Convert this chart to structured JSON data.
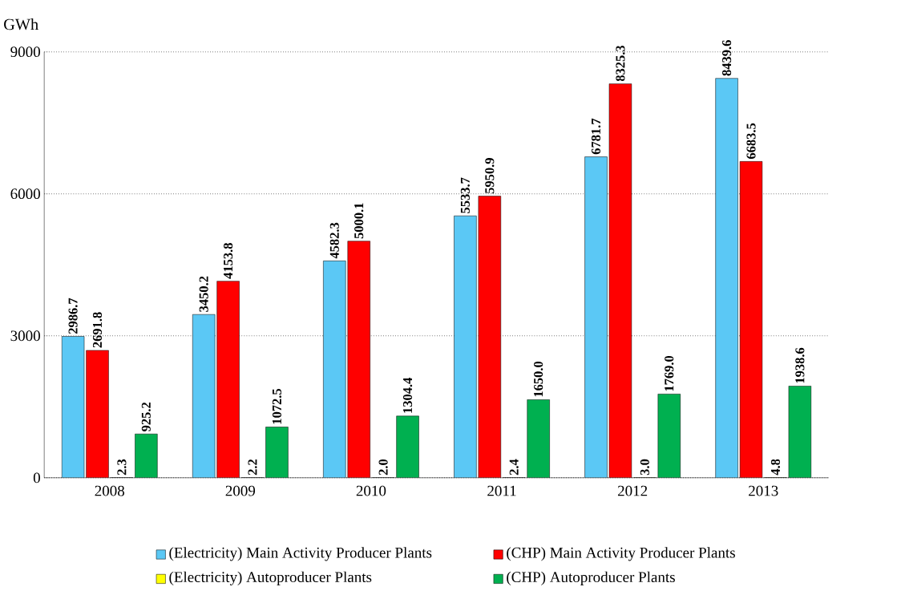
{
  "chart_data": {
    "type": "bar",
    "ylabel": "GWh",
    "categories": [
      "2008",
      "2009",
      "2010",
      "2011",
      "2012",
      "2013"
    ],
    "series": [
      {
        "name": "(Electricity) Main Activity Producer Plants",
        "color": "#5bc8f5",
        "values": [
          2986.7,
          3450.2,
          4582.3,
          5533.7,
          6781.7,
          8439.6
        ],
        "value_labels": [
          "2986.7",
          "3450.2",
          "4582.3",
          "5533.7",
          "6781.7",
          "8439.6"
        ]
      },
      {
        "name": "(CHP) Main Activity Producer Plants",
        "color": "#ff0000",
        "values": [
          2691.8,
          4153.8,
          5000.1,
          5950.9,
          8325.3,
          6683.5
        ],
        "value_labels": [
          "2691.8",
          "4153.8",
          "5000.1",
          "5950.9",
          "8325.3",
          "6683.5"
        ]
      },
      {
        "name": "(Electricity) Autoproducer Plants",
        "color": "#ffff00",
        "values": [
          2.3,
          2.2,
          2.0,
          2.4,
          3.0,
          4.8
        ],
        "value_labels": [
          "2.3",
          "2.2",
          "2.0",
          "2.4",
          "3.0",
          "4.8"
        ]
      },
      {
        "name": "(CHP) Autoproducer Plants",
        "color": "#00b050",
        "values": [
          925.2,
          1072.5,
          1304.4,
          1650.0,
          1769.0,
          1938.6
        ],
        "value_labels": [
          "925.2",
          "1072.5",
          "1304.4",
          "1650.0",
          "1769.0",
          "1938.6"
        ]
      }
    ],
    "ylim": [
      0,
      9000
    ],
    "yticks": [
      0,
      3000,
      6000,
      9000
    ],
    "grid": "y",
    "legend": "bottom"
  }
}
